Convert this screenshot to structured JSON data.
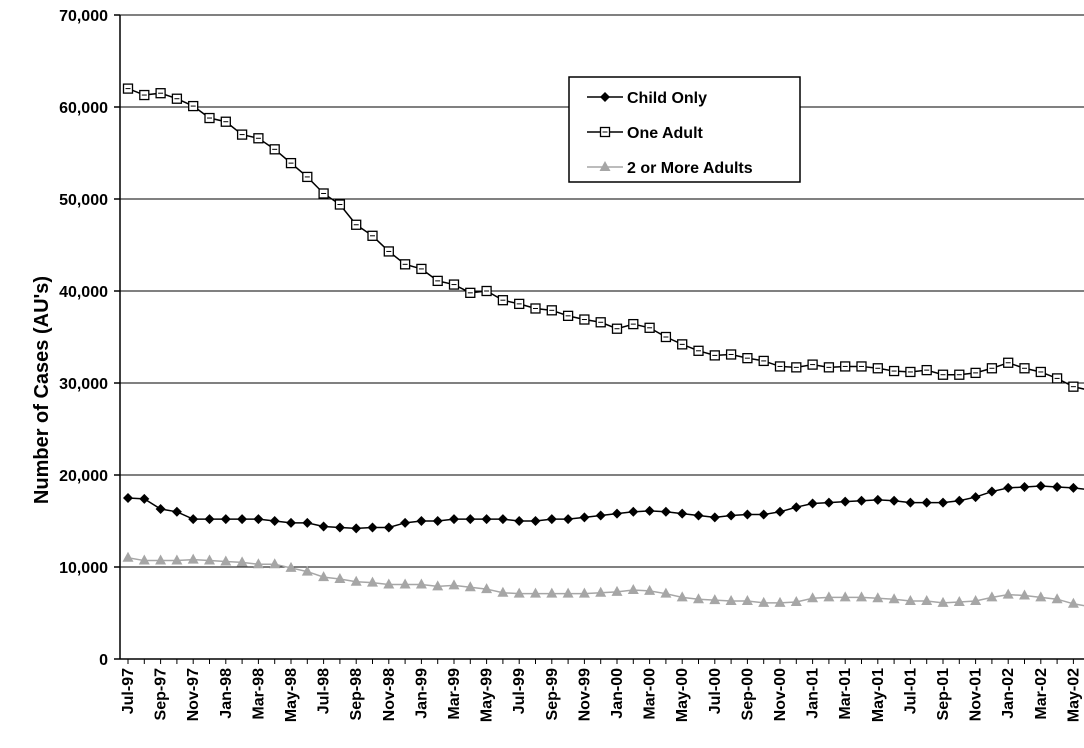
{
  "chart_data": {
    "type": "line",
    "title": "",
    "xlabel": "",
    "ylabel": "Number of Cases (AU's)",
    "ylim": [
      0,
      70000
    ],
    "yticks": [
      0,
      10000,
      20000,
      30000,
      40000,
      50000,
      60000,
      70000
    ],
    "ytick_labels": [
      "0",
      "10,000",
      "20,000",
      "30,000",
      "40,000",
      "50,000",
      "60,000",
      "70,000"
    ],
    "grid": true,
    "legend_position": "top-center",
    "x": [
      "Jul-97",
      "Aug-97",
      "Sep-97",
      "Oct-97",
      "Nov-97",
      "Dec-97",
      "Jan-98",
      "Feb-98",
      "Mar-98",
      "Apr-98",
      "May-98",
      "Jun-98",
      "Jul-98",
      "Aug-98",
      "Sep-98",
      "Oct-98",
      "Nov-98",
      "Dec-98",
      "Jan-99",
      "Feb-99",
      "Mar-99",
      "Apr-99",
      "May-99",
      "Jun-99",
      "Jul-99",
      "Aug-99",
      "Sep-99",
      "Oct-99",
      "Nov-99",
      "Dec-99",
      "Jan-00",
      "Feb-00",
      "Mar-00",
      "Apr-00",
      "May-00",
      "Jun-00",
      "Jul-00",
      "Aug-00",
      "Sep-00",
      "Oct-00",
      "Nov-00",
      "Dec-00",
      "Jan-01",
      "Feb-01",
      "Mar-01",
      "Apr-01",
      "May-01",
      "Jun-01",
      "Jul-01",
      "Aug-01",
      "Sep-01",
      "Oct-01",
      "Nov-01",
      "Dec-01",
      "Jan-02",
      "Feb-02",
      "Mar-02",
      "Apr-02",
      "May-02",
      "Jun-02"
    ],
    "x_tick_labels": [
      "Jul-97",
      "Sep-97",
      "Nov-97",
      "Jan-98",
      "Mar-98",
      "May-98",
      "Jul-98",
      "Sep-98",
      "Nov-98",
      "Jan-99",
      "Mar-99",
      "May-99",
      "Jul-99",
      "Sep-99",
      "Nov-99",
      "Jan-00",
      "Mar-00",
      "May-00",
      "Jul-00",
      "Sep-00",
      "Nov-00",
      "Jan-01",
      "Mar-01",
      "May-01",
      "Jul-01",
      "Sep-01",
      "Nov-01",
      "Jan-02",
      "Mar-02",
      "May-02"
    ],
    "series": [
      {
        "name": "Child Only",
        "color": "#000000",
        "marker": "diamond",
        "values": [
          17500,
          17400,
          16300,
          16000,
          15200,
          15200,
          15200,
          15200,
          15200,
          15000,
          14800,
          14800,
          14400,
          14300,
          14200,
          14300,
          14300,
          14800,
          15000,
          15000,
          15200,
          15200,
          15200,
          15200,
          15000,
          15000,
          15200,
          15200,
          15400,
          15600,
          15800,
          16000,
          16100,
          16000,
          15800,
          15600,
          15400,
          15600,
          15700,
          15700,
          16000,
          16500,
          16900,
          17000,
          17100,
          17200,
          17300,
          17200,
          17000,
          17000,
          17000,
          17200,
          17600,
          18200,
          18600,
          18700,
          18800,
          18700,
          18600,
          18400
        ]
      },
      {
        "name": "One Adult",
        "color": "#000000",
        "marker": "square",
        "values": [
          62000,
          61300,
          61500,
          60900,
          60100,
          58800,
          58400,
          57000,
          56600,
          55400,
          53900,
          52400,
          50600,
          49400,
          47200,
          46000,
          44300,
          42900,
          42400,
          41100,
          40700,
          39800,
          40000,
          39000,
          38600,
          38100,
          37900,
          37300,
          36900,
          36600,
          35900,
          36400,
          36000,
          35000,
          34200,
          33500,
          33000,
          33100,
          32700,
          32400,
          31800,
          31700,
          32000,
          31700,
          31800,
          31800,
          31600,
          31300,
          31200,
          31400,
          30900,
          30900,
          31100,
          31600,
          32200,
          31600,
          31200,
          30500,
          29600,
          29200
        ]
      },
      {
        "name": "2 or More Adults",
        "color": "#a6a6a6",
        "marker": "triangle",
        "values": [
          11000,
          10700,
          10700,
          10700,
          10800,
          10700,
          10600,
          10500,
          10300,
          10300,
          9900,
          9500,
          8900,
          8700,
          8400,
          8300,
          8100,
          8100,
          8100,
          7900,
          8000,
          7800,
          7600,
          7200,
          7100,
          7100,
          7100,
          7100,
          7100,
          7200,
          7300,
          7500,
          7400,
          7100,
          6700,
          6500,
          6400,
          6300,
          6300,
          6100,
          6100,
          6200,
          6600,
          6700,
          6700,
          6700,
          6600,
          6500,
          6300,
          6300,
          6100,
          6200,
          6300,
          6700,
          7000,
          6900,
          6700,
          6500,
          6000,
          5700
        ]
      }
    ]
  }
}
